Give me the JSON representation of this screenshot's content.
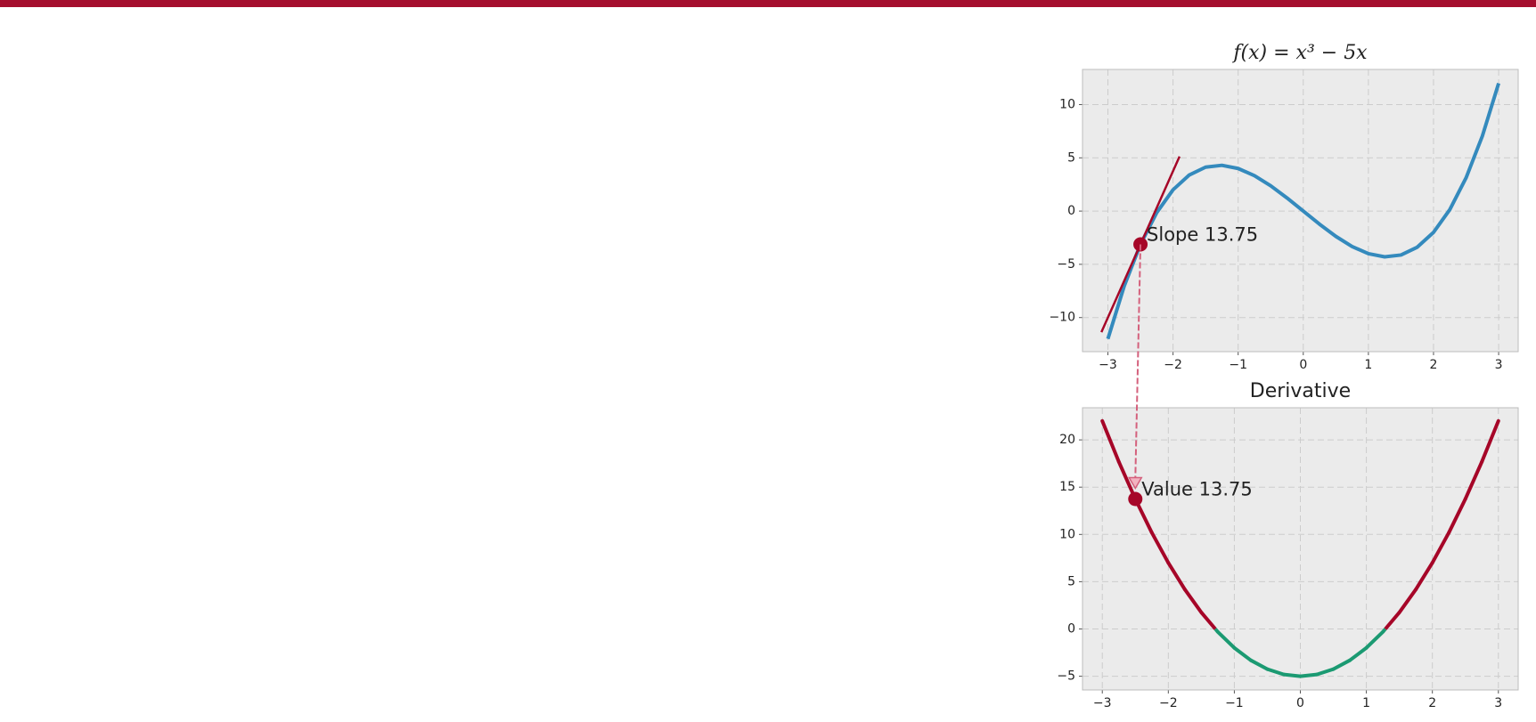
{
  "chart_data": [
    {
      "type": "line",
      "title": "f(x) = x³ − 5x",
      "x": [
        -3,
        -2.75,
        -2.5,
        -2.25,
        -2,
        -1.75,
        -1.5,
        -1.25,
        -1,
        -0.75,
        -0.5,
        -0.25,
        0,
        0.25,
        0.5,
        0.75,
        1,
        1.25,
        1.5,
        1.75,
        2,
        2.25,
        2.5,
        2.75,
        3
      ],
      "values": [
        -12,
        -7.047,
        -3.125,
        -0.141,
        2,
        3.391,
        4.125,
        4.297,
        4,
        3.328,
        2.375,
        1.234,
        0,
        -1.234,
        -2.375,
        -3.328,
        -4,
        -4.297,
        -4.125,
        -3.391,
        -2,
        0.141,
        3.125,
        7.047,
        12
      ],
      "color": "#348abd",
      "xlim": [
        -3.39,
        3.3
      ],
      "ylim": [
        -13.2,
        13.3
      ],
      "xticks": [
        {
          "value": -3,
          "label": "−3"
        },
        {
          "value": -2,
          "label": "−2"
        },
        {
          "value": -1,
          "label": "−1"
        },
        0,
        1,
        2,
        3
      ],
      "yticks": [
        {
          "value": -10,
          "label": "−10"
        },
        {
          "value": -5,
          "label": "−5"
        },
        0,
        5,
        10
      ],
      "grid": true,
      "marker": {
        "x": -2.5,
        "y": -3.125,
        "label": "Slope 13.75",
        "color": "#a60628"
      },
      "tangent": {
        "slope": 13.75,
        "x_range": [
          -3.1,
          -1.9
        ],
        "color": "#a60628"
      }
    },
    {
      "type": "line",
      "title": "Derivative",
      "x": [
        -3,
        -2.75,
        -2.5,
        -2.25,
        -2,
        -1.75,
        -1.5,
        -1.25,
        -1,
        -0.75,
        -0.5,
        -0.25,
        0,
        0.25,
        0.5,
        0.75,
        1,
        1.25,
        1.5,
        1.75,
        2,
        2.25,
        2.5,
        2.75,
        3
      ],
      "values": [
        22,
        17.6875,
        13.75,
        10.1875,
        7,
        4.1875,
        1.75,
        -0.3125,
        -2,
        -3.3125,
        -4.25,
        -4.8125,
        -5,
        -4.8125,
        -4.25,
        -3.3125,
        -2,
        -0.3125,
        1.75,
        4.1875,
        7,
        10.1875,
        13.75,
        17.6875,
        22
      ],
      "positive_color": "#a60628",
      "negative_color": "#1b9a72",
      "xlim": [
        -3.3,
        3.3
      ],
      "ylim": [
        -6.45,
        23.4
      ],
      "xticks": [
        {
          "value": -3,
          "label": "−3"
        },
        {
          "value": -2,
          "label": "−2"
        },
        {
          "value": -1,
          "label": "−1"
        },
        0,
        1,
        2,
        3
      ],
      "yticks": [
        {
          "value": -5,
          "label": "−5"
        },
        0,
        5,
        10,
        15,
        20
      ],
      "grid": true,
      "marker": {
        "x": -2.5,
        "y": 13.75,
        "label": "Value 13.75",
        "color": "#a60628"
      }
    }
  ]
}
